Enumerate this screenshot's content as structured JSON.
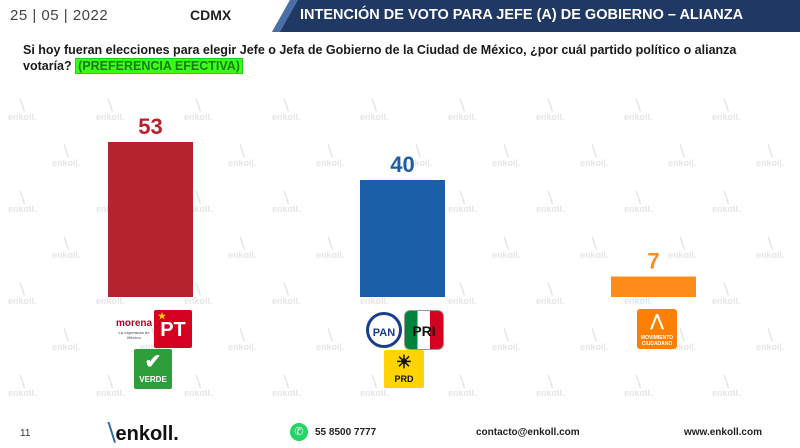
{
  "header": {
    "date": "25 | 05 | 2022",
    "region": "CDMX",
    "title": "INTENCIÓN DE VOTO PARA JEFE (A) DE GOBIERNO – ALIANZA",
    "bar_color": "#1f3864"
  },
  "question": {
    "text": "Si hoy fueran elecciones para elegir Jefe o Jefa de Gobierno de la Ciudad de México, ¿por cuál partido político o alianza votaría?",
    "tag": "(PREFERENCIA EFECTIVA)"
  },
  "watermark": {
    "text": "enkoll."
  },
  "chart_data": {
    "type": "bar",
    "categories": [
      "MORENA-PT-VERDE",
      "PAN-PRI-PRD",
      "MOVIMIENTO CIUDADANO"
    ],
    "values": [
      53,
      40,
      7
    ],
    "value_labels": [
      "53",
      "40",
      "7"
    ],
    "colors": [
      "#b5232f",
      "#1a5ea8",
      "#ff8c1a"
    ],
    "ylim": [
      0,
      60
    ],
    "grid": false,
    "title": "",
    "xlabel": "",
    "ylabel": ""
  },
  "logos": {
    "morena": {
      "name": "morena",
      "sub": "La esperanza de México"
    },
    "pt": {
      "name": "PT",
      "icon": "star-icon"
    },
    "verde": {
      "name": "VERDE",
      "icon": "toucan-icon"
    },
    "pan": {
      "name": "PAN"
    },
    "pri": {
      "name": "PRI"
    },
    "prd": {
      "name": "PRD",
      "icon": "sun-icon"
    },
    "mc": {
      "name": "MOVIMIENTO CIUDADANO",
      "icon": "eagle-icon"
    }
  },
  "footer": {
    "page": "11",
    "brand": "enkoll.",
    "phone": "55 8500 7777",
    "email": "contacto@enkoll.com",
    "web": "www.enkoll.com"
  }
}
